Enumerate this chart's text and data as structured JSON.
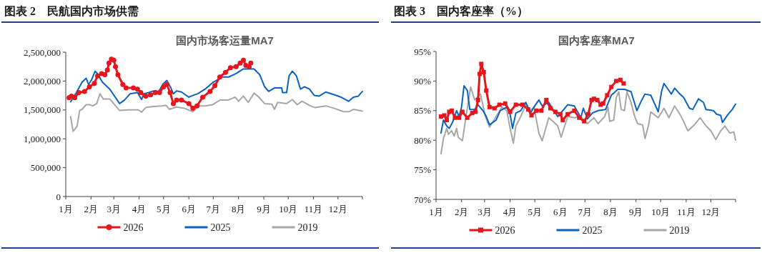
{
  "chart_data": [
    {
      "type": "line",
      "title": "图表 2　民航国内市场供需",
      "subtitle": "国内市场客运量MA7",
      "xlim": [
        "--01-01",
        "--12-31"
      ],
      "xticks": [
        {
          "value": "--01-01",
          "label": "1月"
        },
        {
          "value": "--02-01",
          "label": "2月"
        },
        {
          "value": "--03-01",
          "label": "3月"
        },
        {
          "value": "--04-01",
          "label": "4月"
        },
        {
          "value": "--05-01",
          "label": "5月"
        },
        {
          "value": "--06-01",
          "label": "6月"
        },
        {
          "value": "--07-01",
          "label": "7月"
        },
        {
          "value": "--08-01",
          "label": "8月"
        },
        {
          "value": "--09-01",
          "label": "9月"
        },
        {
          "value": "--10-01",
          "label": "10月"
        },
        {
          "value": "--11-01",
          "label": "11月"
        },
        {
          "value": "--12-01",
          "label": "12月"
        },
        {
          "value": "--12-31",
          "label": null
        }
      ],
      "ylim": [
        0,
        2500000
      ],
      "yticks": [
        0,
        {
          "value": 500000,
          "label": "500,000"
        },
        {
          "value": 1000000,
          "label": "1,000,000"
        },
        {
          "value": 1500000,
          "label": "1,500,000"
        },
        {
          "value": 2000000,
          "label": "2,000,000"
        },
        {
          "value": 2500000,
          "label": "2,500,000"
        }
      ],
      "grid": false,
      "legend": "bottom",
      "series": [
        {
          "name": "2026",
          "color": "#e8141c",
          "marker": "circle",
          "x": [
            "--01-05",
            "--01-08",
            "--01-12",
            "--01-17",
            "--01-24",
            "--01-30",
            "--02-05",
            "--02-09",
            "--02-14",
            "--02-18",
            "--02-21",
            "--02-23",
            "--02-26",
            "--03-01",
            "--03-03",
            "--03-06",
            "--03-12",
            "--03-16",
            "--03-25",
            "--03-30",
            "--04-03",
            "--04-09",
            "--04-15",
            "--04-21",
            "--04-26",
            "--05-01",
            "--05-05",
            "--05-09",
            "--05-13",
            "--05-17",
            "--05-23",
            "--06-01",
            "--06-06",
            "--06-11",
            "--06-18",
            "--06-27",
            "--07-03",
            "--07-09",
            "--07-16",
            "--07-22",
            "--07-29",
            "--08-03",
            "--08-07",
            "--08-10",
            "--08-14",
            "--08-16"
          ],
          "values": [
            1710000,
            1740000,
            1710000,
            1800000,
            1820000,
            1900000,
            1960000,
            2090000,
            2130000,
            2110000,
            2190000,
            2310000,
            2380000,
            2360000,
            2250000,
            2110000,
            1940000,
            1880000,
            1880000,
            1860000,
            1800000,
            1740000,
            1760000,
            1800000,
            1800000,
            1900000,
            1940000,
            1800000,
            1610000,
            1670000,
            1670000,
            1610000,
            1530000,
            1570000,
            1720000,
            1820000,
            1920000,
            2070000,
            2150000,
            2230000,
            2250000,
            2310000,
            2360000,
            2270000,
            2250000,
            2310000
          ]
        },
        {
          "name": "2025",
          "color": "#0a62c0",
          "marker": "none",
          "x": [
            "--01-07",
            "--01-14",
            "--01-21",
            "--01-26",
            "--01-29",
            "--02-02",
            "--02-06",
            "--02-09",
            "--02-15",
            "--02-24",
            "--03-08",
            "--03-14",
            "--03-21",
            "--03-30",
            "--04-04",
            "--04-07",
            "--04-13",
            "--04-19",
            "--04-25",
            "--05-01",
            "--05-05",
            "--05-10",
            "--05-13",
            "--05-17",
            "--05-23",
            "--06-01",
            "--06-04",
            "--06-12",
            "--06-21",
            "--07-01",
            "--07-12",
            "--07-20",
            "--07-29",
            "--08-07",
            "--08-14",
            "--08-20",
            "--08-27",
            "--09-02",
            "--09-07",
            "--09-14",
            "--09-23",
            "--09-24",
            "--09-29",
            "--10-02",
            "--10-06",
            "--10-11",
            "--10-16",
            "--10-21",
            "--10-27",
            "--11-02",
            "--11-08",
            "--11-16",
            "--11-27",
            "--12-05",
            "--12-14",
            "--12-20",
            "--12-26",
            "--12-31"
          ],
          "values": [
            1640000,
            1800000,
            1980000,
            2050000,
            1940000,
            2030000,
            2170000,
            2130000,
            1980000,
            1860000,
            1610000,
            1670000,
            1780000,
            1800000,
            1680000,
            1780000,
            1800000,
            1830000,
            1820000,
            1960000,
            2010000,
            1880000,
            1780000,
            1830000,
            1810000,
            1720000,
            1740000,
            1780000,
            1860000,
            1980000,
            2070000,
            2070000,
            2130000,
            2210000,
            2210000,
            2210000,
            2110000,
            1900000,
            1820000,
            1880000,
            1880000,
            1800000,
            1800000,
            2090000,
            2170000,
            2090000,
            1860000,
            1900000,
            1860000,
            1750000,
            1740000,
            1810000,
            1760000,
            1720000,
            1650000,
            1720000,
            1740000,
            1820000
          ]
        },
        {
          "name": "2019",
          "color": "#a6a6a6",
          "marker": "none",
          "x": [
            "--01-07",
            "--01-10",
            "--01-13",
            "--01-15",
            "--01-18",
            "--01-21",
            "--01-26",
            "--01-30",
            "--02-03",
            "--02-08",
            "--02-12",
            "--02-16",
            "--02-24",
            "--03-02",
            "--03-08",
            "--03-19",
            "--03-31",
            "--04-04",
            "--04-09",
            "--04-18",
            "--04-29",
            "--05-04",
            "--05-08",
            "--05-17",
            "--05-26",
            "--06-06",
            "--06-12",
            "--06-21",
            "--06-30",
            "--07-09",
            "--07-19",
            "--07-28",
            "--08-01",
            "--08-07",
            "--08-13",
            "--08-20",
            "--08-26",
            "--09-02",
            "--09-11",
            "--09-14",
            "--09-18",
            "--09-29",
            "--10-06",
            "--10-12",
            "--10-18",
            "--10-28",
            "--11-03",
            "--11-16",
            "--11-26",
            "--12-08",
            "--12-15",
            "--12-20",
            "--12-31"
          ],
          "values": [
            1380000,
            1130000,
            1180000,
            1220000,
            1490000,
            1510000,
            1590000,
            1590000,
            1570000,
            1610000,
            1780000,
            1690000,
            1690000,
            1590000,
            1490000,
            1500000,
            1500000,
            1460000,
            1540000,
            1560000,
            1570000,
            1580000,
            1510000,
            1550000,
            1530000,
            1470000,
            1570000,
            1570000,
            1590000,
            1670000,
            1670000,
            1720000,
            1650000,
            1740000,
            1630000,
            1790000,
            1720000,
            1610000,
            1600000,
            1510000,
            1630000,
            1610000,
            1680000,
            1590000,
            1650000,
            1570000,
            1540000,
            1570000,
            1530000,
            1470000,
            1470000,
            1510000,
            1480000
          ]
        }
      ]
    },
    {
      "type": "line",
      "title": "图表 3　国内客座率（%）",
      "subtitle": "国内客座率MA7",
      "xlim": [
        "--01-01",
        "--12-31"
      ],
      "xticks": [
        {
          "value": "--01-01",
          "label": "1月"
        },
        {
          "value": "--02-01",
          "label": "2月"
        },
        {
          "value": "--03-01",
          "label": "3月"
        },
        {
          "value": "--04-01",
          "label": "4月"
        },
        {
          "value": "--05-01",
          "label": "5月"
        },
        {
          "value": "--06-01",
          "label": "6月"
        },
        {
          "value": "--07-01",
          "label": "7月"
        },
        {
          "value": "--08-01",
          "label": "8月"
        },
        {
          "value": "--09-01",
          "label": "9月"
        },
        {
          "value": "--10-01",
          "label": "10月"
        },
        {
          "value": "--11-01",
          "label": "11月"
        },
        {
          "value": "--12-01",
          "label": "12月"
        },
        {
          "value": "--12-31",
          "label": null
        }
      ],
      "ylim": [
        70,
        95
      ],
      "yticks": [
        {
          "value": 70,
          "label": "70%"
        },
        {
          "value": 75,
          "label": "75%"
        },
        {
          "value": 80,
          "label": "80%"
        },
        {
          "value": 85,
          "label": "85%"
        },
        {
          "value": 90,
          "label": "90%"
        },
        {
          "value": 95,
          "label": "95%"
        }
      ],
      "grid": false,
      "legend": "bottom",
      "series": [
        {
          "name": "2026",
          "color": "#e8141c",
          "marker": "square",
          "x": [
            "--01-07",
            "--01-11",
            "--01-14",
            "--01-17",
            "--01-20",
            "--01-24",
            "--01-29",
            "--02-02",
            "--02-08",
            "--02-14",
            "--02-18",
            "--02-21",
            "--02-23",
            "--02-25",
            "--02-28",
            "--03-03",
            "--03-07",
            "--03-13",
            "--03-19",
            "--03-26",
            "--04-01",
            "--04-08",
            "--04-16",
            "--04-23",
            "--04-27",
            "--05-03",
            "--05-09",
            "--05-15",
            "--05-20",
            "--05-26",
            "--06-01",
            "--06-04",
            "--06-10",
            "--06-18",
            "--06-24",
            "--06-30",
            "--07-05",
            "--07-09",
            "--07-12",
            "--07-16",
            "--07-20",
            "--07-23",
            "--07-28",
            "--08-02",
            "--08-08",
            "--08-13",
            "--08-17"
          ],
          "values": [
            84.0,
            84.2,
            83.4,
            84.8,
            85.0,
            83.8,
            83.8,
            84.8,
            83.8,
            84.6,
            84.8,
            86.8,
            91.2,
            92.9,
            91.5,
            88.4,
            85.6,
            85.4,
            86.0,
            86.2,
            84.8,
            86.0,
            86.0,
            85.2,
            84.2,
            85.0,
            85.0,
            86.8,
            85.4,
            84.8,
            84.4,
            83.4,
            84.4,
            85.0,
            83.8,
            83.2,
            84.4,
            86.8,
            87.0,
            86.8,
            86.0,
            86.2,
            87.6,
            89.0,
            90.0,
            90.2,
            89.6
          ]
        },
        {
          "name": "2025",
          "color": "#0a62c0",
          "marker": "none",
          "x": [
            "--01-07",
            "--01-10",
            "--01-14",
            "--01-17",
            "--01-21",
            "--01-26",
            "--01-29",
            "--02-01",
            "--02-04",
            "--02-08",
            "--02-11",
            "--02-17",
            "--02-21",
            "--02-27",
            "--03-03",
            "--03-07",
            "--03-15",
            "--03-20",
            "--03-28",
            "--04-01",
            "--04-04",
            "--04-08",
            "--04-14",
            "--04-20",
            "--04-26",
            "--04-30",
            "--05-06",
            "--05-10",
            "--05-18",
            "--05-23",
            "--05-29",
            "--06-04",
            "--06-10",
            "--06-18",
            "--06-26",
            "--06-29",
            "--07-04",
            "--07-10",
            "--07-17",
            "--07-26",
            "--08-02",
            "--08-10",
            "--08-18",
            "--08-26",
            "--09-02",
            "--09-08",
            "--09-12",
            "--09-19",
            "--09-28",
            "--10-02",
            "--10-05",
            "--10-10",
            "--10-14",
            "--10-18",
            "--10-23",
            "--10-29",
            "--11-05",
            "--11-09",
            "--11-16",
            "--11-22",
            "--11-25",
            "--12-04",
            "--12-08",
            "--12-13",
            "--12-15",
            "--12-21",
            "--12-27",
            "--12-31"
          ],
          "values": [
            81.2,
            83.4,
            82.4,
            82.0,
            83.0,
            85.0,
            84.0,
            85.6,
            89.2,
            88.4,
            85.2,
            85.2,
            86.0,
            85.0,
            84.0,
            82.6,
            83.4,
            85.0,
            85.6,
            84.4,
            82.0,
            84.6,
            85.0,
            86.4,
            84.6,
            85.6,
            86.8,
            85.8,
            86.4,
            85.2,
            84.0,
            85.0,
            86.0,
            85.8,
            83.8,
            85.4,
            83.6,
            84.6,
            85.0,
            85.2,
            87.6,
            88.6,
            88.6,
            88.2,
            85.0,
            86.8,
            87.8,
            87.6,
            84.8,
            88.2,
            89.6,
            88.6,
            87.8,
            88.8,
            88.0,
            87.2,
            85.4,
            85.2,
            87.0,
            86.4,
            85.2,
            85.0,
            84.4,
            84.2,
            83.0,
            84.2,
            85.2,
            86.1
          ]
        },
        {
          "name": "2019",
          "color": "#a6a6a6",
          "marker": "none",
          "x": [
            "--01-07",
            "--01-10",
            "--01-14",
            "--01-16",
            "--01-20",
            "--01-23",
            "--01-26",
            "--01-28",
            "--02-02",
            "--02-06",
            "--02-12",
            "--02-17",
            "--02-24",
            "--03-02",
            "--03-07",
            "--03-15",
            "--03-22",
            "--03-28",
            "--04-01",
            "--04-05",
            "--04-08",
            "--04-14",
            "--04-20",
            "--04-26",
            "--04-30",
            "--05-06",
            "--05-10",
            "--05-18",
            "--05-23",
            "--05-29",
            "--06-02",
            "--06-10",
            "--06-18",
            "--06-26",
            "--07-04",
            "--07-12",
            "--07-17",
            "--07-25",
            "--07-29",
            "--07-31",
            "--08-05",
            "--08-08",
            "--08-11",
            "--08-14",
            "--08-18",
            "--08-21",
            "--08-26",
            "--08-30",
            "--09-03",
            "--09-09",
            "--09-12",
            "--09-16",
            "--09-19",
            "--09-28",
            "--10-05",
            "--10-11",
            "--10-18",
            "--10-26",
            "--11-03",
            "--11-11",
            "--11-18",
            "--11-24",
            "--12-01",
            "--12-07",
            "--12-13",
            "--12-18",
            "--12-24",
            "--12-29",
            "--12-31"
          ],
          "values": [
            77.7,
            80.3,
            82.0,
            81.0,
            81.6,
            80.7,
            82.0,
            80.5,
            79.9,
            83.6,
            89.0,
            86.8,
            87.8,
            84.0,
            82.2,
            84.0,
            85.6,
            85.0,
            82.0,
            79.5,
            82.4,
            84.0,
            86.0,
            85.0,
            85.6,
            81.2,
            79.9,
            83.8,
            83.2,
            82.4,
            80.5,
            84.0,
            83.8,
            84.0,
            82.8,
            83.8,
            82.8,
            84.0,
            85.6,
            83.2,
            83.4,
            87.2,
            88.2,
            85.2,
            85.0,
            88.2,
            86.4,
            84.2,
            82.8,
            82.6,
            80.3,
            82.4,
            84.8,
            83.8,
            85.4,
            83.8,
            85.8,
            84.0,
            81.6,
            82.6,
            83.8,
            82.6,
            81.6,
            80.1,
            81.6,
            82.4,
            81.2,
            81.4,
            80.0
          ]
        }
      ]
    }
  ]
}
